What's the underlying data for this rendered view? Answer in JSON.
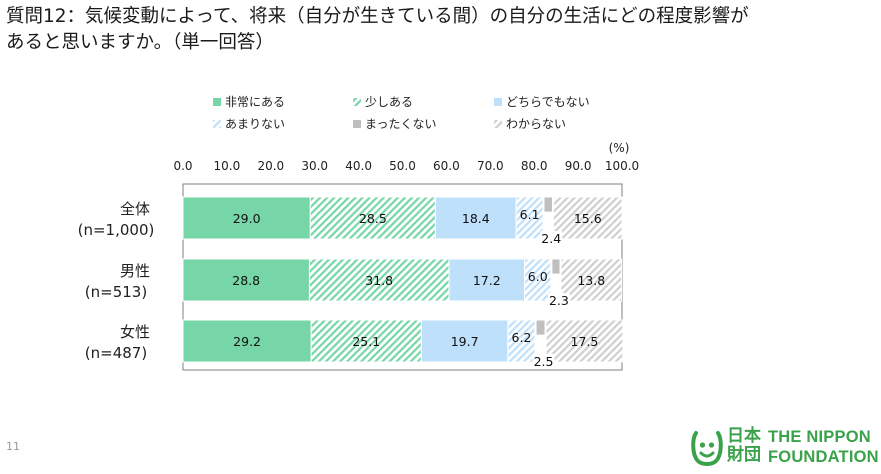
{
  "title_line1": "質問12：気候変動によって、将来（自分が生きている間）の自分の生活にどの程度影響が",
  "title_line2": "あると思いますか。（単一回答）",
  "page_number": "11",
  "logo": {
    "jp_line1": "日本",
    "jp_line2": "財団",
    "en_line1": "THE NIPPON",
    "en_line2": "FOUNDATION",
    "color": "#3aa24a"
  },
  "chart_data": {
    "type": "stacked-bar-horizontal",
    "unit_label": "(%)",
    "xlim": [
      0,
      100
    ],
    "ticks": [
      "0.0",
      "10.0",
      "20.0",
      "30.0",
      "40.0",
      "50.0",
      "60.0",
      "70.0",
      "80.0",
      "90.0",
      "100.0"
    ],
    "categories": [
      {
        "line1": "全体",
        "line2": "(n=1,000)"
      },
      {
        "line1": "男性",
        "line2": "(n=513)"
      },
      {
        "line1": "女性",
        "line2": "(n=487)"
      }
    ],
    "series": [
      {
        "name": "非常にある",
        "color": "#76d6a8",
        "pattern": "solid",
        "values": [
          29.0,
          28.8,
          29.2
        ],
        "labels": [
          "29.0",
          "28.8",
          "29.2"
        ]
      },
      {
        "name": "少しある",
        "color": "#76d6a8",
        "pattern": "hatch",
        "values": [
          28.5,
          31.8,
          25.1
        ],
        "labels": [
          "28.5",
          "31.8",
          "25.1"
        ]
      },
      {
        "name": "どちらでもない",
        "color": "#bfe0fb",
        "pattern": "solid",
        "values": [
          18.4,
          17.2,
          19.7
        ],
        "labels": [
          "18.4",
          "17.2",
          "19.7"
        ]
      },
      {
        "name": "あまりない",
        "color": "#bfe0fb",
        "pattern": "hatch",
        "values": [
          6.1,
          6.0,
          6.2
        ],
        "labels": [
          "6.1",
          "6.0",
          "6.2"
        ]
      },
      {
        "name": "まったくない",
        "color": "#bfbfbf",
        "pattern": "solid",
        "values": [
          2.4,
          2.3,
          2.5
        ],
        "labels": [
          "2.4",
          "2.3",
          "2.5"
        ]
      },
      {
        "name": "わからない",
        "color": "#d4d4d4",
        "pattern": "hatch",
        "values": [
          15.6,
          13.8,
          17.5
        ],
        "labels": [
          "15.6",
          "13.8",
          "17.5"
        ]
      }
    ]
  }
}
